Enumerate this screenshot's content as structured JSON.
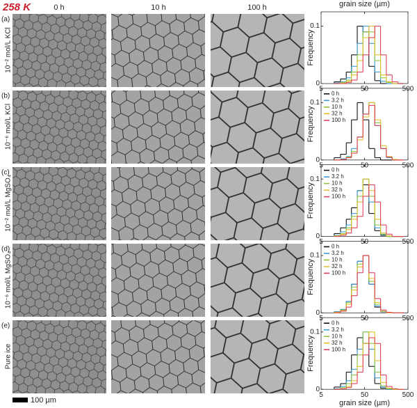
{
  "header": {
    "title": "258 K",
    "columns": [
      "0 h",
      "10 h",
      "100 h"
    ]
  },
  "rows": [
    {
      "letter": "(a)",
      "sample": "10⁻² mol/L KCl"
    },
    {
      "letter": "(b)",
      "sample": "10⁻⁶ mol/L KCl"
    },
    {
      "letter": "(c)",
      "sample": "10⁻² mol/L MgSO₄"
    },
    {
      "letter": "(d)",
      "sample": "10⁻⁶ mol/L MgSO₄"
    },
    {
      "letter": "(e)",
      "sample": "Pure ice"
    }
  ],
  "scale_bar": "100 µm",
  "chart_data": [
    {
      "type": "histogram",
      "xlabel": "grain size (µm)",
      "xlabel_position": "top",
      "ylabel": "Frequency",
      "xscale": "log",
      "xlim": [
        5,
        500
      ],
      "xticks": [
        5,
        50,
        500
      ],
      "ylim": [
        0,
        0.125
      ],
      "yticks": [
        0,
        0.1
      ],
      "legend": false,
      "bins": [
        10,
        14,
        19,
        25,
        34,
        46,
        63,
        86,
        117,
        159,
        216,
        294,
        400
      ],
      "series": [
        {
          "color": "#111111",
          "values": [
            0.003,
            0.008,
            0.02,
            0.05,
            0.1,
            0.09,
            0.03,
            0.005,
            0,
            0,
            0,
            0
          ]
        },
        {
          "color": "#3b9bd8",
          "values": [
            0.001,
            0.003,
            0.01,
            0.03,
            0.07,
            0.1,
            0.07,
            0.02,
            0.004,
            0,
            0,
            0
          ]
        },
        {
          "color": "#8cc63f",
          "values": [
            0,
            0.002,
            0.006,
            0.02,
            0.05,
            0.09,
            0.09,
            0.04,
            0.01,
            0.002,
            0,
            0
          ]
        },
        {
          "color": "#e3c02a",
          "values": [
            0,
            0.001,
            0.004,
            0.015,
            0.04,
            0.08,
            0.1,
            0.05,
            0.015,
            0.003,
            0,
            0
          ]
        },
        {
          "color": "#e0405a",
          "values": [
            0,
            0,
            0.002,
            0.006,
            0.02,
            0.05,
            0.08,
            0.1,
            0.05,
            0.015,
            0.003,
            0
          ]
        }
      ]
    },
    {
      "type": "histogram",
      "ylabel": "Frequency",
      "xscale": "log",
      "xlim": [
        5,
        500
      ],
      "xticks": [
        5,
        50,
        500
      ],
      "ylim": [
        0,
        0.125
      ],
      "yticks": [
        0,
        0.1
      ],
      "legend": "upper left",
      "bins": [
        10,
        14,
        19,
        25,
        34,
        46,
        63,
        86,
        117,
        159,
        216,
        294,
        400
      ],
      "series": [
        {
          "name": "0 h",
          "color": "#111111",
          "values": [
            0.004,
            0.01,
            0.03,
            0.07,
            0.1,
            0.07,
            0.02,
            0.004,
            0,
            0,
            0,
            0
          ]
        },
        {
          "name": "3.2 h",
          "color": "#3b9bd8",
          "values": [
            0,
            0.002,
            0.006,
            0.02,
            0.04,
            0.08,
            0.1,
            0.06,
            0.02,
            0.004,
            0,
            0
          ]
        },
        {
          "name": "10 h",
          "color": "#8cc63f",
          "values": [
            0,
            0.001,
            0.005,
            0.015,
            0.04,
            0.08,
            0.1,
            0.065,
            0.02,
            0.005,
            0,
            0
          ]
        },
        {
          "name": "32 h",
          "color": "#e3c02a",
          "values": [
            0,
            0.001,
            0.004,
            0.012,
            0.035,
            0.075,
            0.1,
            0.07,
            0.025,
            0.006,
            0.001,
            0
          ]
        },
        {
          "name": "100 h",
          "color": "#e0405a",
          "values": [
            0,
            0.001,
            0.004,
            0.012,
            0.04,
            0.08,
            0.095,
            0.06,
            0.02,
            0.005,
            0,
            0
          ]
        }
      ]
    },
    {
      "type": "histogram",
      "ylabel": "Frequency",
      "xscale": "log",
      "xlim": [
        5,
        500
      ],
      "xticks": [
        5,
        50,
        500
      ],
      "ylim": [
        0,
        0.125
      ],
      "yticks": [
        0,
        0.1
      ],
      "legend": "upper left",
      "bins": [
        10,
        14,
        19,
        25,
        34,
        46,
        63,
        86,
        117,
        159,
        216,
        294,
        400
      ],
      "series": [
        {
          "name": "0 h",
          "color": "#111111",
          "values": [
            0.005,
            0.015,
            0.03,
            0.05,
            0.08,
            0.09,
            0.04,
            0.01,
            0.002,
            0,
            0,
            0
          ]
        },
        {
          "name": "3.2 h",
          "color": "#3b9bd8",
          "values": [
            0.002,
            0.008,
            0.02,
            0.04,
            0.08,
            0.1,
            0.06,
            0.015,
            0.003,
            0,
            0,
            0
          ]
        },
        {
          "name": "10 h",
          "color": "#8cc63f",
          "values": [
            0.001,
            0.005,
            0.015,
            0.035,
            0.07,
            0.1,
            0.07,
            0.02,
            0.004,
            0,
            0,
            0
          ]
        },
        {
          "name": "32 h",
          "color": "#e3c02a",
          "values": [
            0.001,
            0.004,
            0.012,
            0.03,
            0.06,
            0.1,
            0.08,
            0.03,
            0.006,
            0.001,
            0,
            0
          ]
        },
        {
          "name": "100 h",
          "color": "#e0405a",
          "values": [
            0,
            0.002,
            0.006,
            0.015,
            0.035,
            0.07,
            0.09,
            0.06,
            0.02,
            0.004,
            0,
            0
          ]
        }
      ]
    },
    {
      "type": "histogram",
      "ylabel": "Frequency",
      "xscale": "log",
      "xlim": [
        5,
        500
      ],
      "xticks": [
        5,
        50,
        500
      ],
      "ylim": [
        0,
        0.125
      ],
      "yticks": [
        0,
        0.1
      ],
      "legend": "upper left",
      "bins": [
        10,
        14,
        19,
        25,
        34,
        46,
        63,
        86,
        117,
        159,
        216,
        294,
        400
      ],
      "series": [
        {
          "name": "0 h",
          "color": "#111111",
          "values": [
            0.002,
            0.006,
            0.02,
            0.05,
            0.09,
            0.1,
            0.05,
            0.01,
            0.002,
            0,
            0,
            0
          ]
        },
        {
          "name": "3.2 h",
          "color": "#3b9bd8",
          "values": [
            0.002,
            0.006,
            0.02,
            0.05,
            0.09,
            0.1,
            0.05,
            0.012,
            0.002,
            0,
            0,
            0
          ]
        },
        {
          "name": "10 h",
          "color": "#8cc63f",
          "values": [
            0.001,
            0.005,
            0.018,
            0.045,
            0.085,
            0.1,
            0.055,
            0.015,
            0.003,
            0,
            0,
            0
          ]
        },
        {
          "name": "32 h",
          "color": "#e3c02a",
          "values": [
            0.001,
            0.004,
            0.015,
            0.04,
            0.08,
            0.1,
            0.06,
            0.018,
            0.003,
            0,
            0,
            0
          ]
        },
        {
          "name": "100 h",
          "color": "#e0405a",
          "values": [
            0,
            0.003,
            0.01,
            0.03,
            0.07,
            0.1,
            0.07,
            0.025,
            0.005,
            0.001,
            0,
            0
          ]
        }
      ]
    },
    {
      "type": "histogram",
      "xlabel": "grain size (µm)",
      "xlabel_position": "bottom",
      "ylabel": "Frequency",
      "xscale": "log",
      "xlim": [
        5,
        500
      ],
      "xticks": [
        5,
        50,
        500
      ],
      "ylim": [
        0,
        0.125
      ],
      "yticks": [
        0,
        0.1
      ],
      "legend": "upper left",
      "bins": [
        10,
        14,
        19,
        25,
        34,
        46,
        63,
        86,
        117,
        159,
        216,
        294,
        400
      ],
      "series": [
        {
          "name": "0 h",
          "color": "#111111",
          "values": [
            0.004,
            0.01,
            0.03,
            0.06,
            0.09,
            0.08,
            0.04,
            0.01,
            0.002,
            0,
            0,
            0
          ]
        },
        {
          "name": "3.2 h",
          "color": "#3b9bd8",
          "values": [
            0.001,
            0.005,
            0.015,
            0.035,
            0.07,
            0.1,
            0.07,
            0.02,
            0.004,
            0,
            0,
            0
          ]
        },
        {
          "name": "10 h",
          "color": "#8cc63f",
          "values": [
            0,
            0.003,
            0.01,
            0.025,
            0.06,
            0.1,
            0.08,
            0.03,
            0.006,
            0.001,
            0,
            0
          ]
        },
        {
          "name": "32 h",
          "color": "#e3c02a",
          "values": [
            0,
            0.001,
            0.005,
            0.015,
            0.04,
            0.08,
            0.1,
            0.05,
            0.012,
            0.002,
            0,
            0
          ]
        },
        {
          "name": "100 h",
          "color": "#e0405a",
          "values": [
            0,
            0.001,
            0.003,
            0.01,
            0.03,
            0.06,
            0.09,
            0.08,
            0.025,
            0.005,
            0.001,
            0
          ]
        }
      ]
    }
  ]
}
